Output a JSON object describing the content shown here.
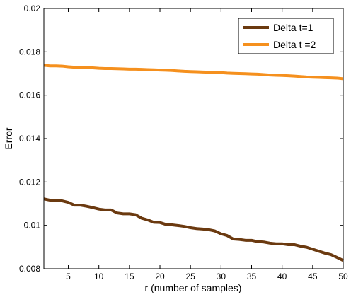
{
  "chart_data": {
    "type": "line",
    "title": "",
    "xlabel": "r  (number of samples)",
    "ylabel": "Error",
    "xlim": [
      1,
      50
    ],
    "ylim": [
      0.008,
      0.02
    ],
    "x_ticks": [
      5,
      10,
      15,
      20,
      25,
      30,
      35,
      40,
      45,
      50
    ],
    "x_tick_labels": [
      "5",
      "10",
      "15",
      "20",
      "25",
      "30",
      "35",
      "40",
      "45",
      "50"
    ],
    "y_ticks": [
      0.008,
      0.01,
      0.012,
      0.014,
      0.016,
      0.018,
      0.02
    ],
    "y_tick_labels": [
      "0.008",
      "0.01",
      "0.012",
      "0.014",
      "0.016",
      "0.018",
      "0.02"
    ],
    "grid": false,
    "legend_position": "top-right",
    "x": [
      1,
      2,
      3,
      4,
      5,
      6,
      7,
      8,
      9,
      10,
      11,
      12,
      13,
      14,
      15,
      16,
      17,
      18,
      19,
      20,
      21,
      22,
      23,
      24,
      25,
      26,
      27,
      28,
      29,
      30,
      31,
      32,
      33,
      34,
      35,
      36,
      37,
      38,
      39,
      40,
      41,
      42,
      43,
      44,
      45,
      46,
      47,
      48,
      49,
      50
    ],
    "series": [
      {
        "name": "Delta t=1",
        "color": "#6b3a10",
        "values": [
          0.01122,
          0.01116,
          0.01113,
          0.01113,
          0.01106,
          0.01093,
          0.01093,
          0.01088,
          0.01082,
          0.01075,
          0.01071,
          0.01071,
          0.01057,
          0.01053,
          0.01053,
          0.01049,
          0.01033,
          0.01025,
          0.01014,
          0.01013,
          0.01004,
          0.01002,
          0.00999,
          0.00995,
          0.00989,
          0.00985,
          0.00983,
          0.0098,
          0.00974,
          0.00961,
          0.00953,
          0.00937,
          0.00935,
          0.00931,
          0.00931,
          0.00925,
          0.00923,
          0.00918,
          0.00915,
          0.00915,
          0.00911,
          0.00911,
          0.00904,
          0.00899,
          0.0089,
          0.00881,
          0.00872,
          0.00865,
          0.00852,
          0.00838
        ]
      },
      {
        "name": "Delta t =2",
        "color": "#f5901e",
        "values": [
          0.01738,
          0.01735,
          0.01735,
          0.01734,
          0.01731,
          0.01729,
          0.01729,
          0.01728,
          0.01726,
          0.01724,
          0.01723,
          0.01723,
          0.01722,
          0.01721,
          0.0172,
          0.0172,
          0.01719,
          0.01718,
          0.01717,
          0.01716,
          0.01715,
          0.01714,
          0.01712,
          0.0171,
          0.01709,
          0.01708,
          0.01707,
          0.01706,
          0.01705,
          0.01704,
          0.01702,
          0.01701,
          0.017,
          0.01699,
          0.01698,
          0.01697,
          0.01695,
          0.01693,
          0.01692,
          0.01691,
          0.0169,
          0.01688,
          0.01686,
          0.01684,
          0.01683,
          0.01682,
          0.01681,
          0.0168,
          0.01679,
          0.01676
        ]
      }
    ]
  }
}
